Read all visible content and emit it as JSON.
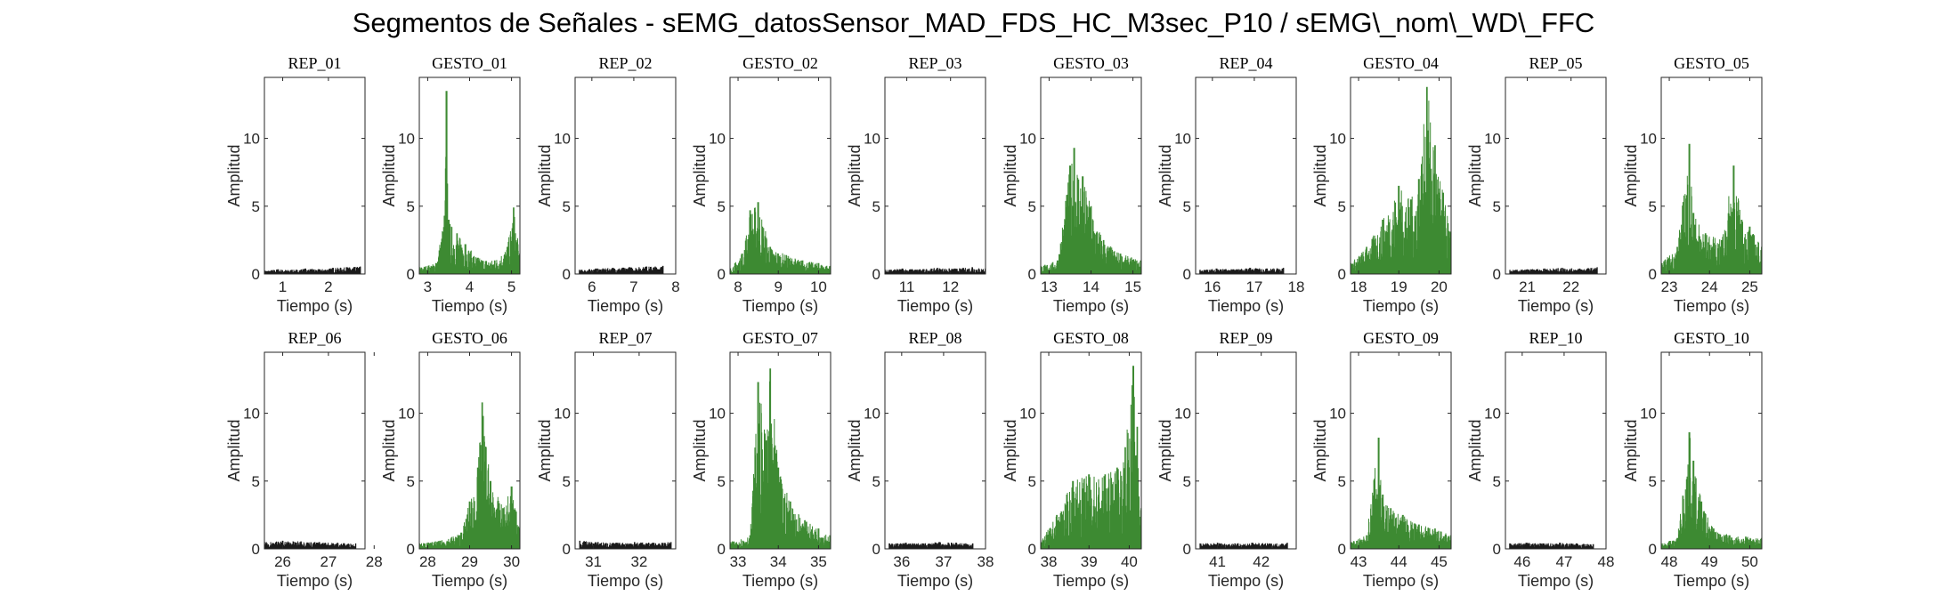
{
  "figure": {
    "title": "Segmentos de Señales - sEMG_datosSensor_MAD_FDS_HC_M3sec_P10 / sEMG\\_nom\\_WD\\_FFC"
  },
  "colors": {
    "rep": "#1a1a1a",
    "gesto": "#3d8a32",
    "axis": "#262626"
  },
  "chart_data": [
    {
      "type": "area",
      "title": "REP_01",
      "xlabel": "Tiempo (s)",
      "ylabel": "Amplitud",
      "xlim": [
        0.6,
        2.8
      ],
      "ylim": [
        0,
        14.5
      ],
      "xticks": [
        1,
        2
      ],
      "yticks": [
        0,
        5,
        10
      ],
      "series": [
        {
          "name": "REP_01",
          "color": "rep",
          "x": [
            0.6,
            0.9,
            1.2,
            1.5,
            1.8,
            2.1,
            2.4,
            2.7
          ],
          "values": [
            0.25,
            0.35,
            0.3,
            0.4,
            0.35,
            0.45,
            0.5,
            0.55
          ]
        }
      ]
    },
    {
      "type": "area",
      "title": "GESTO_01",
      "xlabel": "Tiempo (s)",
      "ylabel": "Amplitud",
      "xlim": [
        2.8,
        5.2
      ],
      "ylim": [
        0,
        14.5
      ],
      "xticks": [
        3,
        4,
        5
      ],
      "yticks": [
        0,
        5,
        10
      ],
      "series": [
        {
          "name": "GESTO_01",
          "color": "gesto",
          "x": [
            2.8,
            3.2,
            3.4,
            3.45,
            3.5,
            3.7,
            3.9,
            4.2,
            4.6,
            4.9,
            5.05,
            5.2
          ],
          "values": [
            0.5,
            0.8,
            4.3,
            13.5,
            4.0,
            3.0,
            2.2,
            1.2,
            1.0,
            2.0,
            4.9,
            1.5
          ]
        }
      ]
    },
    {
      "type": "area",
      "title": "REP_02",
      "xlabel": "Tiempo (s)",
      "ylabel": "Amplitud",
      "xlim": [
        5.6,
        8.0
      ],
      "ylim": [
        0,
        14.5
      ],
      "xticks": [
        6,
        7,
        8
      ],
      "yticks": [
        0,
        5,
        10
      ],
      "series": [
        {
          "name": "REP_02",
          "color": "rep",
          "x": [
            5.7,
            6.1,
            6.5,
            6.9,
            7.3,
            7.7
          ],
          "values": [
            0.3,
            0.4,
            0.45,
            0.5,
            0.55,
            0.6
          ]
        }
      ]
    },
    {
      "type": "area",
      "title": "GESTO_02",
      "xlabel": "Tiempo (s)",
      "ylabel": "Amplitud",
      "xlim": [
        7.8,
        10.3
      ],
      "ylim": [
        0,
        14.5
      ],
      "xticks": [
        8,
        9,
        10
      ],
      "yticks": [
        0,
        5,
        10
      ],
      "series": [
        {
          "name": "GESTO_02",
          "color": "gesto",
          "x": [
            7.8,
            8.1,
            8.3,
            8.5,
            8.8,
            9.2,
            9.6,
            10.0,
            10.3
          ],
          "values": [
            0.4,
            1.5,
            4.7,
            5.3,
            2.0,
            1.4,
            1.0,
            0.8,
            0.6
          ]
        }
      ]
    },
    {
      "type": "area",
      "title": "REP_03",
      "xlabel": "Tiempo (s)",
      "ylabel": "Amplitud",
      "xlim": [
        10.5,
        12.8
      ],
      "ylim": [
        0,
        14.5
      ],
      "xticks": [
        11,
        12
      ],
      "yticks": [
        0,
        5,
        10
      ],
      "series": [
        {
          "name": "REP_03",
          "color": "rep",
          "x": [
            10.5,
            10.9,
            11.3,
            11.7,
            12.1,
            12.5,
            12.8
          ],
          "values": [
            0.3,
            0.4,
            0.35,
            0.45,
            0.4,
            0.5,
            0.4
          ]
        }
      ]
    },
    {
      "type": "area",
      "title": "GESTO_03",
      "xlabel": "Tiempo (s)",
      "ylabel": "Amplitud",
      "xlim": [
        12.8,
        15.2
      ],
      "ylim": [
        0,
        14.5
      ],
      "xticks": [
        13,
        14,
        15
      ],
      "yticks": [
        0,
        5,
        10
      ],
      "series": [
        {
          "name": "GESTO_03",
          "color": "gesto",
          "x": [
            12.8,
            13.2,
            13.5,
            13.6,
            13.8,
            14.0,
            14.3,
            14.7,
            15.2
          ],
          "values": [
            0.6,
            1.0,
            8.0,
            9.3,
            7.2,
            5.0,
            2.5,
            1.5,
            1.0
          ]
        }
      ]
    },
    {
      "type": "area",
      "title": "REP_04",
      "xlabel": "Tiempo (s)",
      "ylabel": "Amplitud",
      "xlim": [
        15.6,
        18.0
      ],
      "ylim": [
        0,
        14.5
      ],
      "xticks": [
        16,
        17,
        18
      ],
      "yticks": [
        0,
        5,
        10
      ],
      "series": [
        {
          "name": "REP_04",
          "color": "rep",
          "x": [
            15.7,
            16.1,
            16.5,
            16.9,
            17.3,
            17.7
          ],
          "values": [
            0.3,
            0.4,
            0.35,
            0.45,
            0.4,
            0.45
          ]
        }
      ]
    },
    {
      "type": "area",
      "title": "GESTO_04",
      "xlabel": "Tiempo (s)",
      "ylabel": "Amplitud",
      "xlim": [
        17.8,
        20.3
      ],
      "ylim": [
        0,
        14.5
      ],
      "xticks": [
        18,
        19,
        20
      ],
      "yticks": [
        0,
        5,
        10
      ],
      "series": [
        {
          "name": "GESTO_04",
          "color": "gesto",
          "x": [
            17.8,
            18.2,
            18.6,
            19.0,
            19.3,
            19.5,
            19.7,
            19.9,
            20.1,
            20.3
          ],
          "values": [
            0.8,
            2.0,
            4.0,
            6.5,
            5.5,
            7.0,
            13.8,
            9.5,
            6.0,
            3.0
          ]
        }
      ]
    },
    {
      "type": "area",
      "title": "REP_05",
      "xlabel": "Tiempo (s)",
      "ylabel": "Amplitud",
      "xlim": [
        20.5,
        22.8
      ],
      "ylim": [
        0,
        14.5
      ],
      "xticks": [
        21,
        22
      ],
      "yticks": [
        0,
        5,
        10
      ],
      "series": [
        {
          "name": "REP_05",
          "color": "rep",
          "x": [
            20.6,
            21.0,
            21.4,
            21.8,
            22.2,
            22.6
          ],
          "values": [
            0.3,
            0.35,
            0.4,
            0.45,
            0.4,
            0.5
          ]
        }
      ]
    },
    {
      "type": "area",
      "title": "GESTO_05",
      "xlabel": "Tiempo (s)",
      "ylabel": "Amplitud",
      "xlim": [
        22.8,
        25.3
      ],
      "ylim": [
        0,
        14.5
      ],
      "xticks": [
        23,
        24,
        25
      ],
      "yticks": [
        0,
        5,
        10
      ],
      "series": [
        {
          "name": "GESTO_05",
          "color": "gesto",
          "x": [
            22.8,
            23.2,
            23.5,
            23.6,
            23.9,
            24.3,
            24.6,
            24.8,
            25.0,
            25.3
          ],
          "values": [
            0.8,
            2.0,
            9.6,
            4.5,
            3.0,
            2.5,
            8.0,
            4.0,
            3.5,
            2.0
          ]
        }
      ]
    },
    {
      "type": "area",
      "title": "REP_06",
      "xlabel": "Tiempo (s)",
      "ylabel": "Amplitud",
      "xlim": [
        25.6,
        27.8
      ],
      "ylim": [
        0,
        14.5
      ],
      "xticks": [
        26,
        27,
        28
      ],
      "yticks": [
        0,
        5,
        10
      ],
      "series": [
        {
          "name": "REP_06",
          "color": "rep",
          "x": [
            25.6,
            26.0,
            26.4,
            26.8,
            27.2,
            27.6
          ],
          "values": [
            0.5,
            0.6,
            0.55,
            0.5,
            0.45,
            0.4
          ]
        }
      ]
    },
    {
      "type": "area",
      "title": "GESTO_06",
      "xlabel": "Tiempo (s)",
      "ylabel": "Amplitud",
      "xlim": [
        27.8,
        30.2
      ],
      "ylim": [
        0,
        14.5
      ],
      "xticks": [
        28,
        29,
        30
      ],
      "yticks": [
        0,
        5,
        10
      ],
      "series": [
        {
          "name": "GESTO_06",
          "color": "gesto",
          "x": [
            27.8,
            28.3,
            28.8,
            29.0,
            29.2,
            29.3,
            29.5,
            29.8,
            30.0,
            30.2
          ],
          "values": [
            0.4,
            0.6,
            1.2,
            3.5,
            6.0,
            10.8,
            5.0,
            3.0,
            4.6,
            1.5
          ]
        }
      ]
    },
    {
      "type": "area",
      "title": "REP_07",
      "xlabel": "Tiempo (s)",
      "ylabel": "Amplitud",
      "xlim": [
        30.6,
        32.8
      ],
      "ylim": [
        0,
        14.5
      ],
      "xticks": [
        31,
        32
      ],
      "yticks": [
        0,
        5,
        10
      ],
      "series": [
        {
          "name": "REP_07",
          "color": "rep",
          "x": [
            30.7,
            31.1,
            31.5,
            31.9,
            32.3,
            32.7
          ],
          "values": [
            0.6,
            0.5,
            0.45,
            0.5,
            0.45,
            0.5
          ]
        }
      ]
    },
    {
      "type": "area",
      "title": "GESTO_07",
      "xlabel": "Tiempo (s)",
      "ylabel": "Amplitud",
      "xlim": [
        32.8,
        35.3
      ],
      "ylim": [
        0,
        14.5
      ],
      "xticks": [
        33,
        34,
        35
      ],
      "yticks": [
        0,
        5,
        10
      ],
      "series": [
        {
          "name": "GESTO_07",
          "color": "gesto",
          "x": [
            32.8,
            33.3,
            33.5,
            33.7,
            33.8,
            34.0,
            34.3,
            34.7,
            35.0,
            35.3
          ],
          "values": [
            0.5,
            1.0,
            12.3,
            8.0,
            13.3,
            6.0,
            3.5,
            2.0,
            1.5,
            1.0
          ]
        }
      ]
    },
    {
      "type": "area",
      "title": "REP_08",
      "xlabel": "Tiempo (s)",
      "ylabel": "Amplitud",
      "xlim": [
        35.6,
        38.0
      ],
      "ylim": [
        0,
        14.5
      ],
      "xticks": [
        36,
        37,
        38
      ],
      "yticks": [
        0,
        5,
        10
      ],
      "series": [
        {
          "name": "REP_08",
          "color": "rep",
          "x": [
            35.7,
            36.1,
            36.5,
            36.9,
            37.3,
            37.7
          ],
          "values": [
            0.4,
            0.45,
            0.4,
            0.5,
            0.45,
            0.4
          ]
        }
      ]
    },
    {
      "type": "area",
      "title": "GESTO_08",
      "xlabel": "Tiempo (s)",
      "ylabel": "Amplitud",
      "xlim": [
        37.8,
        40.3
      ],
      "ylim": [
        0,
        14.5
      ],
      "xticks": [
        38,
        39,
        40
      ],
      "yticks": [
        0,
        5,
        10
      ],
      "series": [
        {
          "name": "GESTO_08",
          "color": "gesto",
          "x": [
            37.8,
            38.2,
            38.6,
            39.0,
            39.4,
            39.7,
            39.9,
            40.1,
            40.2,
            40.3
          ],
          "values": [
            0.5,
            2.5,
            5.0,
            5.5,
            5.5,
            6.0,
            7.5,
            13.5,
            9.0,
            3.0
          ]
        }
      ]
    },
    {
      "type": "area",
      "title": "REP_09",
      "xlabel": "Tiempo (s)",
      "ylabel": "Amplitud",
      "xlim": [
        40.5,
        42.8
      ],
      "ylim": [
        0,
        14.5
      ],
      "xticks": [
        41,
        42
      ],
      "yticks": [
        0,
        5,
        10
      ],
      "series": [
        {
          "name": "REP_09",
          "color": "rep",
          "x": [
            40.6,
            41.0,
            41.4,
            41.8,
            42.2,
            42.6
          ],
          "values": [
            0.4,
            0.45,
            0.4,
            0.45,
            0.4,
            0.45
          ]
        }
      ]
    },
    {
      "type": "area",
      "title": "GESTO_09",
      "xlabel": "Tiempo (s)",
      "ylabel": "Amplitud",
      "xlim": [
        42.8,
        45.3
      ],
      "ylim": [
        0,
        14.5
      ],
      "xticks": [
        43,
        44,
        45
      ],
      "yticks": [
        0,
        5,
        10
      ],
      "series": [
        {
          "name": "GESTO_09",
          "color": "gesto",
          "x": [
            42.8,
            43.2,
            43.5,
            43.6,
            43.8,
            44.1,
            44.5,
            44.9,
            45.3
          ],
          "values": [
            0.5,
            1.0,
            8.2,
            4.0,
            3.0,
            2.5,
            1.8,
            1.5,
            1.0
          ]
        }
      ]
    },
    {
      "type": "area",
      "title": "REP_10",
      "xlabel": "Tiempo (s)",
      "ylabel": "Amplitud",
      "xlim": [
        45.6,
        48.0
      ],
      "ylim": [
        0,
        14.5
      ],
      "xticks": [
        46,
        47,
        48
      ],
      "yticks": [
        0,
        5,
        10
      ],
      "series": [
        {
          "name": "REP_10",
          "color": "rep",
          "x": [
            45.7,
            46.1,
            46.5,
            46.9,
            47.3,
            47.7
          ],
          "values": [
            0.4,
            0.45,
            0.4,
            0.45,
            0.4,
            0.35
          ]
        }
      ]
    },
    {
      "type": "area",
      "title": "GESTO_10",
      "xlabel": "Tiempo (s)",
      "ylabel": "Amplitud",
      "xlim": [
        47.8,
        50.3
      ],
      "ylim": [
        0,
        14.5
      ],
      "xticks": [
        48,
        49,
        50
      ],
      "yticks": [
        0,
        5,
        10
      ],
      "series": [
        {
          "name": "GESTO_10",
          "color": "gesto",
          "x": [
            47.8,
            48.2,
            48.5,
            48.6,
            48.8,
            49.1,
            49.5,
            49.9,
            50.3
          ],
          "values": [
            0.4,
            0.8,
            8.6,
            6.5,
            3.5,
            1.5,
            1.0,
            0.9,
            0.8
          ]
        }
      ]
    }
  ]
}
